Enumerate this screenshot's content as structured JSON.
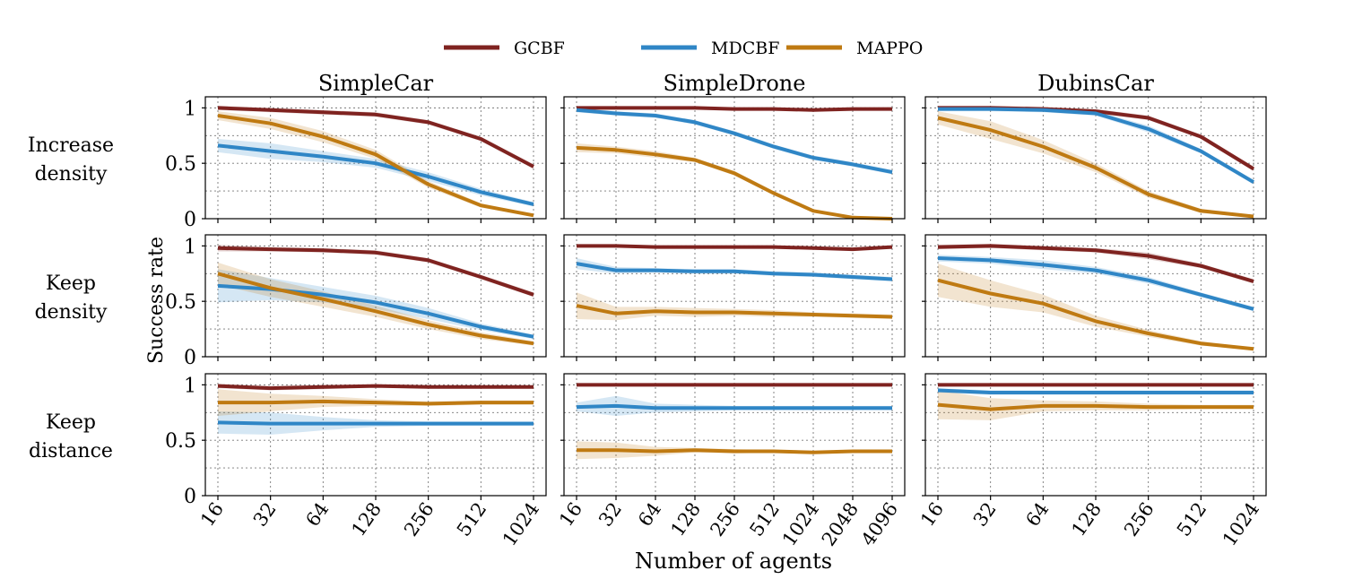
{
  "legend": [
    {
      "name": "GCBF",
      "color": "#7f2320"
    },
    {
      "name": "MDCBF",
      "color": "#2f86c6"
    },
    {
      "name": "MAPPO",
      "color": "#bf7a12"
    }
  ],
  "ylabel": "Success rate",
  "xlabel": "Number of agents",
  "yticks": [
    "0",
    "0.5",
    "1"
  ],
  "columns": [
    {
      "title": "SimpleCar",
      "xticks": [
        "16",
        "32",
        "64",
        "128",
        "256",
        "512",
        "1024"
      ]
    },
    {
      "title": "SimpleDrone",
      "xticks": [
        "16",
        "32",
        "64",
        "128",
        "256",
        "512",
        "1024",
        "2048",
        "4096"
      ]
    },
    {
      "title": "DubinsCar",
      "xticks": [
        "16",
        "32",
        "64",
        "128",
        "256",
        "512",
        "1024"
      ]
    }
  ],
  "rows": [
    {
      "label_lines": [
        "Increase",
        "density"
      ]
    },
    {
      "label_lines": [
        "Keep",
        "density"
      ]
    },
    {
      "label_lines": [
        "Keep",
        "distance"
      ]
    }
  ],
  "chart_data": {
    "type": "line",
    "ylim": [
      0,
      1.1
    ],
    "grid": true,
    "legend_placement": "top-center",
    "panels": [
      {
        "row": 0,
        "col": 0,
        "series": [
          {
            "name": "GCBF",
            "values": [
              1.0,
              0.98,
              0.96,
              0.94,
              0.87,
              0.72,
              0.47
            ],
            "band": [
              0.02,
              0.02,
              0.02,
              0.02,
              0.02,
              0.02,
              0.02
            ]
          },
          {
            "name": "MDCBF",
            "values": [
              0.66,
              0.61,
              0.56,
              0.5,
              0.38,
              0.24,
              0.13
            ],
            "band": [
              0.06,
              0.07,
              0.05,
              0.04,
              0.04,
              0.03,
              0.02
            ]
          },
          {
            "name": "MAPPO",
            "values": [
              0.93,
              0.86,
              0.74,
              0.58,
              0.31,
              0.12,
              0.03
            ],
            "band": [
              0.04,
              0.05,
              0.05,
              0.04,
              0.03,
              0.02,
              0.01
            ]
          }
        ]
      },
      {
        "row": 0,
        "col": 1,
        "series": [
          {
            "name": "GCBF",
            "values": [
              1.0,
              1.0,
              1.0,
              1.0,
              0.99,
              0.99,
              0.98,
              0.99,
              0.99
            ],
            "band": [
              0.01,
              0.01,
              0.01,
              0.01,
              0.01,
              0.01,
              0.01,
              0.01,
              0.01
            ]
          },
          {
            "name": "MDCBF",
            "values": [
              0.98,
              0.95,
              0.93,
              0.87,
              0.77,
              0.65,
              0.55,
              0.49,
              0.42
            ],
            "band": [
              0.02,
              0.02,
              0.02,
              0.02,
              0.02,
              0.02,
              0.02,
              0.02,
              0.02
            ]
          },
          {
            "name": "MAPPO",
            "values": [
              0.64,
              0.62,
              0.58,
              0.53,
              0.41,
              0.23,
              0.07,
              0.01,
              0.0
            ],
            "band": [
              0.04,
              0.03,
              0.03,
              0.02,
              0.02,
              0.02,
              0.01,
              0.01,
              0.0
            ]
          }
        ]
      },
      {
        "row": 0,
        "col": 2,
        "series": [
          {
            "name": "GCBF",
            "values": [
              1.0,
              1.0,
              0.99,
              0.97,
              0.91,
              0.74,
              0.45
            ],
            "band": [
              0.02,
              0.02,
              0.02,
              0.02,
              0.02,
              0.02,
              0.02
            ]
          },
          {
            "name": "MDCBF",
            "values": [
              0.99,
              0.99,
              0.98,
              0.95,
              0.81,
              0.61,
              0.33
            ],
            "band": [
              0.02,
              0.02,
              0.02,
              0.02,
              0.03,
              0.02,
              0.02
            ]
          },
          {
            "name": "MAPPO",
            "values": [
              0.91,
              0.8,
              0.65,
              0.46,
              0.22,
              0.07,
              0.02
            ],
            "band": [
              0.06,
              0.08,
              0.06,
              0.04,
              0.03,
              0.02,
              0.01
            ]
          }
        ]
      },
      {
        "row": 1,
        "col": 0,
        "series": [
          {
            "name": "GCBF",
            "values": [
              0.98,
              0.97,
              0.96,
              0.94,
              0.87,
              0.72,
              0.56
            ],
            "band": [
              0.03,
              0.02,
              0.02,
              0.02,
              0.02,
              0.02,
              0.02
            ]
          },
          {
            "name": "MDCBF",
            "values": [
              0.64,
              0.61,
              0.56,
              0.49,
              0.39,
              0.27,
              0.18
            ],
            "band": [
              0.15,
              0.1,
              0.07,
              0.06,
              0.05,
              0.03,
              0.02
            ]
          },
          {
            "name": "MAPPO",
            "values": [
              0.75,
              0.62,
              0.52,
              0.41,
              0.29,
              0.19,
              0.12
            ],
            "band": [
              0.1,
              0.08,
              0.07,
              0.05,
              0.04,
              0.03,
              0.02
            ]
          }
        ]
      },
      {
        "row": 1,
        "col": 1,
        "series": [
          {
            "name": "GCBF",
            "values": [
              1.0,
              1.0,
              0.99,
              0.99,
              0.99,
              0.99,
              0.98,
              0.97,
              0.99
            ],
            "band": [
              0.01,
              0.01,
              0.01,
              0.01,
              0.01,
              0.01,
              0.01,
              0.01,
              0.01
            ]
          },
          {
            "name": "MDCBF",
            "values": [
              0.84,
              0.78,
              0.78,
              0.77,
              0.77,
              0.75,
              0.74,
              0.72,
              0.7
            ],
            "band": [
              0.05,
              0.03,
              0.02,
              0.02,
              0.02,
              0.02,
              0.02,
              0.02,
              0.02
            ]
          },
          {
            "name": "MAPPO",
            "values": [
              0.46,
              0.39,
              0.41,
              0.4,
              0.4,
              0.39,
              0.38,
              0.37,
              0.36
            ],
            "band": [
              0.12,
              0.06,
              0.04,
              0.04,
              0.03,
              0.03,
              0.02,
              0.02,
              0.02
            ]
          }
        ]
      },
      {
        "row": 1,
        "col": 2,
        "series": [
          {
            "name": "GCBF",
            "values": [
              0.99,
              1.0,
              0.98,
              0.96,
              0.91,
              0.82,
              0.68
            ],
            "band": [
              0.02,
              0.02,
              0.02,
              0.02,
              0.03,
              0.02,
              0.02
            ]
          },
          {
            "name": "MDCBF",
            "values": [
              0.89,
              0.87,
              0.83,
              0.78,
              0.69,
              0.56,
              0.43
            ],
            "band": [
              0.03,
              0.03,
              0.04,
              0.03,
              0.03,
              0.02,
              0.02
            ]
          },
          {
            "name": "MAPPO",
            "values": [
              0.69,
              0.57,
              0.48,
              0.32,
              0.21,
              0.12,
              0.07
            ],
            "band": [
              0.15,
              0.12,
              0.08,
              0.05,
              0.03,
              0.02,
              0.01
            ]
          }
        ]
      },
      {
        "row": 2,
        "col": 0,
        "series": [
          {
            "name": "GCBF",
            "values": [
              0.99,
              0.97,
              0.98,
              0.99,
              0.98,
              0.98,
              0.98
            ],
            "band": [
              0.02,
              0.02,
              0.02,
              0.01,
              0.01,
              0.01,
              0.01
            ]
          },
          {
            "name": "MDCBF",
            "values": [
              0.66,
              0.65,
              0.65,
              0.65,
              0.65,
              0.65,
              0.65
            ],
            "band": [
              0.1,
              0.1,
              0.06,
              0.03,
              0.02,
              0.02,
              0.02
            ]
          },
          {
            "name": "MAPPO",
            "values": [
              0.84,
              0.84,
              0.85,
              0.84,
              0.83,
              0.84,
              0.84
            ],
            "band": [
              0.12,
              0.08,
              0.05,
              0.03,
              0.02,
              0.02,
              0.02
            ]
          }
        ]
      },
      {
        "row": 2,
        "col": 1,
        "series": [
          {
            "name": "GCBF",
            "values": [
              1.0,
              1.0,
              1.0,
              1.0,
              1.0,
              1.0,
              1.0,
              1.0,
              1.0
            ],
            "band": [
              0.01,
              0.01,
              0.01,
              0.01,
              0.01,
              0.01,
              0.01,
              0.01,
              0.01
            ]
          },
          {
            "name": "MDCBF",
            "values": [
              0.8,
              0.81,
              0.79,
              0.79,
              0.79,
              0.79,
              0.79,
              0.79,
              0.79
            ],
            "band": [
              0.04,
              0.09,
              0.04,
              0.03,
              0.02,
              0.02,
              0.02,
              0.02,
              0.02
            ]
          },
          {
            "name": "MAPPO",
            "values": [
              0.41,
              0.41,
              0.4,
              0.41,
              0.4,
              0.4,
              0.39,
              0.4,
              0.4
            ],
            "band": [
              0.08,
              0.07,
              0.04,
              0.02,
              0.02,
              0.01,
              0.01,
              0.01,
              0.01
            ]
          }
        ]
      },
      {
        "row": 2,
        "col": 2,
        "series": [
          {
            "name": "GCBF",
            "values": [
              1.0,
              1.0,
              1.0,
              1.0,
              1.0,
              1.0,
              1.0
            ],
            "band": [
              0.01,
              0.01,
              0.01,
              0.01,
              0.01,
              0.01,
              0.01
            ]
          },
          {
            "name": "MDCBF",
            "values": [
              0.95,
              0.93,
              0.93,
              0.93,
              0.93,
              0.93,
              0.93
            ],
            "band": [
              0.02,
              0.02,
              0.02,
              0.02,
              0.02,
              0.02,
              0.02
            ]
          },
          {
            "name": "MAPPO",
            "values": [
              0.82,
              0.78,
              0.81,
              0.81,
              0.8,
              0.8,
              0.8
            ],
            "band": [
              0.13,
              0.1,
              0.05,
              0.04,
              0.03,
              0.02,
              0.02
            ]
          }
        ]
      }
    ]
  }
}
